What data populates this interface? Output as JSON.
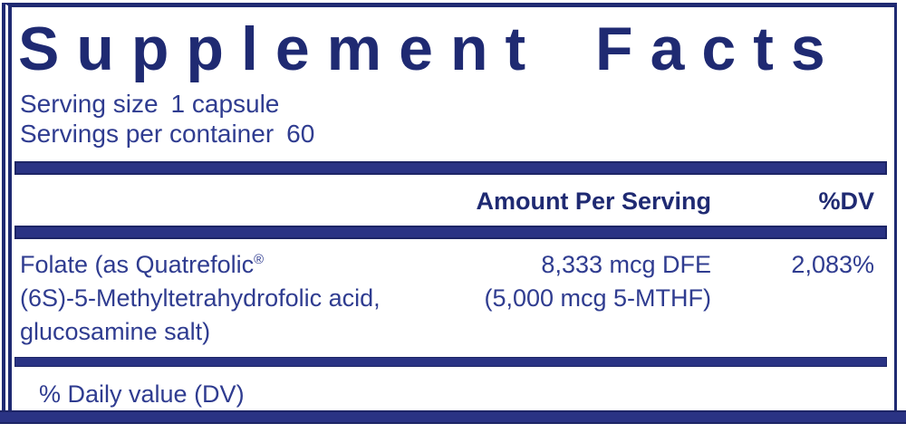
{
  "panel": {
    "title": "Supplement Facts",
    "serving_size_label": "Serving size",
    "serving_size_value": "1 capsule",
    "servings_per_container_label": "Servings per container",
    "servings_per_container_value": "60",
    "header": {
      "amount": "Amount Per Serving",
      "dv": "%DV"
    },
    "rows": [
      {
        "name_lines": [
          "Folate (as Quatrefolic",
          "(6S)-5-Methyltetrahydrofolic acid,",
          "glucosamine salt)"
        ],
        "registered_mark": "®",
        "amount_lines": [
          "8,333 mcg DFE",
          "(5,000 mcg 5-MTHF)"
        ],
        "dv": "2,083%"
      }
    ],
    "footnote": "% Daily value (DV)"
  },
  "colors": {
    "navy_bar": "#2a3384",
    "navy_border": "#1f2a72",
    "body_text": "#2f3c90"
  }
}
